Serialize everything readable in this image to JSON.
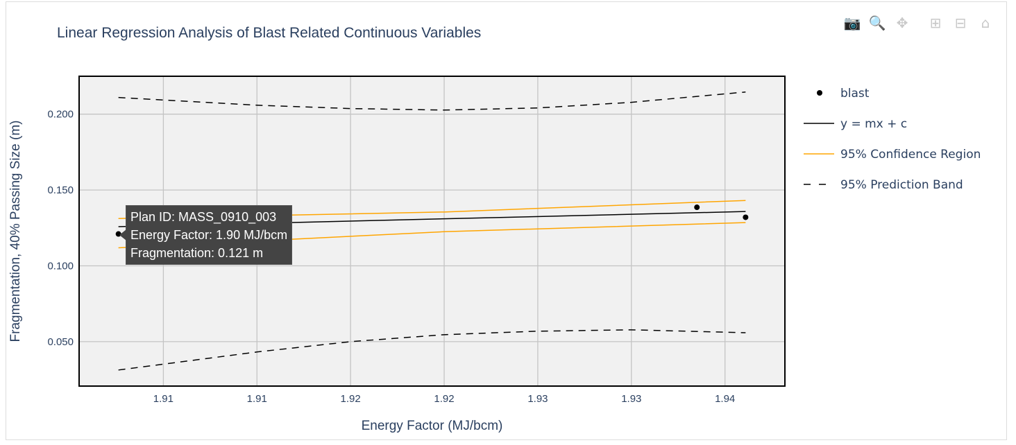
{
  "toolbar": {
    "icons": [
      "camera-icon",
      "zoom-icon",
      "pan-icon",
      "zoom-in-icon",
      "zoom-out-icon",
      "home-icon"
    ]
  },
  "tooltip": {
    "line1": "Plan ID: MASS_0910_003",
    "line2": "Energy Factor: 1.90 MJ/bcm",
    "line3": "Fragmentation: 0.121 m"
  },
  "chart_data": {
    "type": "scatter",
    "title": "Linear Regression Analysis of Blast Related Continuous Variables",
    "xlabel": "Energy Factor (MJ/bcm)",
    "ylabel": "Fragmentation, 40% Passing Size (m)",
    "xlim": [
      1.9005,
      1.9382
    ],
    "ylim": [
      0.0207,
      0.225
    ],
    "xticks": [
      1.905,
      1.91,
      1.915,
      1.92,
      1.925,
      1.93,
      1.935
    ],
    "xtick_labels": [
      "1.91",
      "1.91",
      "1.92",
      "1.92",
      "1.93",
      "1.93",
      "1.94"
    ],
    "yticks": [
      0.05,
      0.1,
      0.15,
      0.2
    ],
    "ytick_labels": [
      "0.050",
      "0.100",
      "0.150",
      "0.200"
    ],
    "grid": true,
    "legend_position": "right",
    "series": [
      {
        "name": "blast",
        "mode": "markers",
        "color": "#000000",
        "x": [
          1.9026,
          1.9335,
          1.9361
        ],
        "y": [
          0.121,
          0.1386,
          0.132
        ]
      },
      {
        "name": "y = mx + c",
        "mode": "line",
        "color": "#000000",
        "x": [
          1.9026,
          1.9361
        ],
        "y": [
          0.1258,
          0.1358
        ]
      },
      {
        "name": "95% Confidence Region",
        "mode": "line",
        "color": "#FFA500",
        "x": [
          1.9026,
          1.92,
          1.9361
        ],
        "y": [
          0.1312,
          0.1355,
          0.1431
        ]
      },
      {
        "name": "",
        "mode": "line",
        "color": "#FFA500",
        "x": [
          1.9026,
          1.92,
          1.9361
        ],
        "y": [
          0.1119,
          0.1225,
          0.1285
        ],
        "showlegend": false
      },
      {
        "name": "95% Prediction Band",
        "mode": "dash",
        "color": "#000000",
        "x": [
          1.9026,
          1.91,
          1.915,
          1.92,
          1.925,
          1.93,
          1.9361
        ],
        "y": [
          0.211,
          0.2059,
          0.2037,
          0.2027,
          0.2041,
          0.2078,
          0.2146
        ]
      },
      {
        "name": "",
        "mode": "dash",
        "color": "#000000",
        "x": [
          1.9026,
          1.91,
          1.915,
          1.92,
          1.925,
          1.93,
          1.9361
        ],
        "y": [
          0.0313,
          0.0432,
          0.05,
          0.0546,
          0.0569,
          0.0578,
          0.0559
        ],
        "showlegend": false
      }
    ]
  }
}
